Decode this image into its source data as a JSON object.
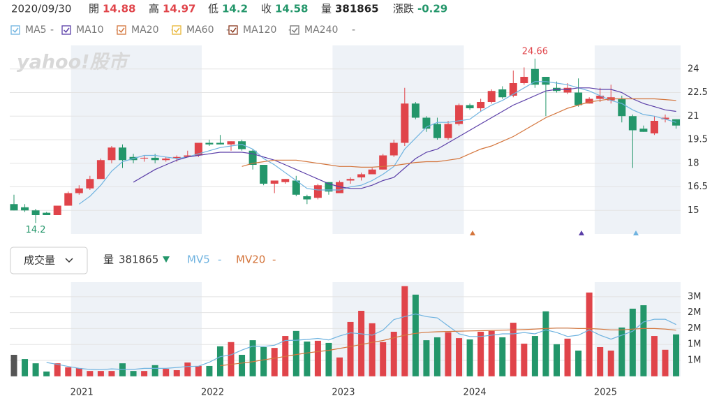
{
  "info": {
    "date": "2020/09/30",
    "fields": [
      {
        "label": "開",
        "value": 14.88,
        "color": "#e0444a"
      },
      {
        "label": "高",
        "value": 14.97,
        "color": "#e0444a"
      },
      {
        "label": "低",
        "value": 14.2,
        "color": "#23966a"
      },
      {
        "label": "收",
        "value": 14.58,
        "color": "#23966a"
      },
      {
        "label": "量",
        "value": 381865,
        "color": "#222222"
      },
      {
        "label": "漲跌",
        "value": -0.29,
        "color": "#23966a"
      }
    ]
  },
  "chart_data": [
    {
      "type": "candlestick",
      "watermark": "yahoo!股市",
      "up_color": "#e0444a",
      "down_color": "#23966a",
      "grid": true,
      "ylim": [
        13.5,
        25.5
      ],
      "yticks": [
        15,
        16.5,
        18,
        19.5,
        21,
        22.5,
        24
      ],
      "candles": {
        "open": [
          15.4,
          15.2,
          15.0,
          14.85,
          14.7,
          15.3,
          16.1,
          16.4,
          17.0,
          18.2,
          19.0,
          18.4,
          18.3,
          18.35,
          18.2,
          18.3,
          18.4,
          18.5,
          19.3,
          19.3,
          19.2,
          19.4,
          18.8,
          17.9,
          16.7,
          16.8,
          16.9,
          15.9,
          15.8,
          16.8,
          16.1,
          16.9,
          17.1,
          17.3,
          17.6,
          18.5,
          19.3,
          21.8,
          20.9,
          20.5,
          19.6,
          20.5,
          21.7,
          21.5,
          21.9,
          22.7,
          22.3,
          23.1,
          24.0,
          23.5,
          22.8,
          22.5,
          22.5,
          21.8,
          22.1,
          22.0,
          22.1,
          21.0,
          20.2,
          19.9,
          20.8,
          20.8
        ],
        "high": [
          16.0,
          15.4,
          15.1,
          14.9,
          15.3,
          16.2,
          16.6,
          17.2,
          18.3,
          19.1,
          19.2,
          18.6,
          18.5,
          18.6,
          18.4,
          18.5,
          18.8,
          19.3,
          19.5,
          19.8,
          19.4,
          19.5,
          18.9,
          17.9,
          16.9,
          17.0,
          17.2,
          16.0,
          16.7,
          16.8,
          16.9,
          17.1,
          17.4,
          17.7,
          18.6,
          19.5,
          22.8,
          21.9,
          21.0,
          20.9,
          20.7,
          21.8,
          21.8,
          22.1,
          22.7,
          22.9,
          23.9,
          24.1,
          24.66,
          23.5,
          23.2,
          23.1,
          23.4,
          22.2,
          22.8,
          23.0,
          22.3,
          21.1,
          20.4,
          21.0,
          21.1,
          20.8
        ],
        "low": [
          15.0,
          14.9,
          14.2,
          14.7,
          14.7,
          15.3,
          16.0,
          16.3,
          17.0,
          18.0,
          17.7,
          18.0,
          18.1,
          18.0,
          18.1,
          18.1,
          18.4,
          18.4,
          19.1,
          19.2,
          18.8,
          18.8,
          17.6,
          16.6,
          16.1,
          16.7,
          15.9,
          15.4,
          15.7,
          16.0,
          16.1,
          16.7,
          16.9,
          17.3,
          17.6,
          18.4,
          19.1,
          20.8,
          20.0,
          19.5,
          19.5,
          20.4,
          21.4,
          21.3,
          21.8,
          22.1,
          22.2,
          23.0,
          22.8,
          21.0,
          22.5,
          22.4,
          21.6,
          21.8,
          21.9,
          21.8,
          20.6,
          17.7,
          20.0,
          19.8,
          20.6,
          20.2
        ],
        "close": [
          15.0,
          15.0,
          14.7,
          14.7,
          15.3,
          16.1,
          16.4,
          17.0,
          18.2,
          19.0,
          18.2,
          18.2,
          18.35,
          18.2,
          18.3,
          18.4,
          18.5,
          19.3,
          19.2,
          19.2,
          19.4,
          18.9,
          17.9,
          16.7,
          16.9,
          17.0,
          16.0,
          15.7,
          16.6,
          16.2,
          16.8,
          17.0,
          17.3,
          17.6,
          18.5,
          19.3,
          21.8,
          20.9,
          20.2,
          19.6,
          20.5,
          21.7,
          21.5,
          21.9,
          22.6,
          22.2,
          23.1,
          23.5,
          23.0,
          23.0,
          22.6,
          22.8,
          21.7,
          22.1,
          22.3,
          22.2,
          21.0,
          20.1,
          20.0,
          20.7,
          20.9,
          20.4
        ]
      },
      "series": [
        {
          "name": "MA5",
          "color": "#6fb3e0",
          "current": "-",
          "values": [
            null,
            null,
            null,
            null,
            null,
            null,
            15.4,
            15.9,
            16.6,
            17.5,
            18.1,
            18.3,
            18.5,
            18.5,
            18.4,
            18.3,
            18.4,
            18.6,
            18.8,
            19.0,
            19.1,
            19.2,
            18.9,
            18.3,
            17.9,
            17.4,
            16.9,
            16.4,
            16.3,
            16.3,
            16.3,
            16.5,
            16.6,
            16.9,
            17.3,
            17.8,
            18.9,
            19.6,
            20.3,
            20.6,
            20.6,
            20.7,
            20.8,
            21.3,
            21.7,
            22.0,
            22.4,
            22.8,
            23.2,
            23.2,
            23.1,
            23.0,
            22.8,
            22.6,
            22.3,
            22.0,
            21.8,
            21.4,
            21.1,
            21.0,
            20.8,
            20.6
          ]
        },
        {
          "name": "MA10",
          "color": "#5b3fa8",
          "current": "-",
          "values": [
            null,
            null,
            null,
            null,
            null,
            null,
            null,
            null,
            null,
            null,
            null,
            16.8,
            17.2,
            17.6,
            17.9,
            18.2,
            18.4,
            18.5,
            18.6,
            18.7,
            18.7,
            18.7,
            18.6,
            18.4,
            18.2,
            17.9,
            17.6,
            17.3,
            17.0,
            16.7,
            16.5,
            16.4,
            16.4,
            16.6,
            16.9,
            17.1,
            17.7,
            18.3,
            18.7,
            18.9,
            19.3,
            19.7,
            20.1,
            20.5,
            20.9,
            21.3,
            21.7,
            22.0,
            22.3,
            22.6,
            22.7,
            22.7,
            22.8,
            22.8,
            22.7,
            22.7,
            22.5,
            22.1,
            21.8,
            21.6,
            21.4,
            21.3
          ]
        },
        {
          "name": "MA20",
          "color": "#d4753c",
          "current": "-",
          "values": [
            null,
            null,
            null,
            null,
            null,
            null,
            null,
            null,
            null,
            null,
            null,
            null,
            null,
            null,
            null,
            null,
            null,
            null,
            null,
            null,
            null,
            17.8,
            18.0,
            18.1,
            18.2,
            18.2,
            18.2,
            18.1,
            18.0,
            17.9,
            17.8,
            17.8,
            17.75,
            17.75,
            17.8,
            17.85,
            17.95,
            18.05,
            18.1,
            18.1,
            18.2,
            18.3,
            18.6,
            18.9,
            19.1,
            19.4,
            19.7,
            20.1,
            20.5,
            20.9,
            21.2,
            21.5,
            21.7,
            21.9,
            22.0,
            22.1,
            22.1,
            22.1,
            22.1,
            22.1,
            22.05,
            22.0
          ]
        },
        {
          "name": "MA60",
          "color": "#e8b534",
          "current": "-"
        },
        {
          "name": "MA120",
          "color": "#8b3a1f",
          "current": "-"
        },
        {
          "name": "MA240",
          "color": "#777777",
          "current": "-"
        }
      ]
    },
    {
      "type": "bar",
      "title": "成交量",
      "highlight_index": 0,
      "highlight_color": "#555555",
      "grid": true,
      "ylim": [
        0,
        3.55
      ],
      "yticks": [
        {
          "value": 0.6,
          "label": "1M"
        },
        {
          "value": 1.2,
          "label": "1M"
        },
        {
          "value": 1.8,
          "label": "2M"
        },
        {
          "value": 2.4,
          "label": "2M"
        },
        {
          "value": 3.0,
          "label": "3M"
        }
      ],
      "xticks": [
        {
          "value": 6.25,
          "label": "2021"
        },
        {
          "value": 18.3,
          "label": "2022"
        },
        {
          "value": 30.35,
          "label": "2023"
        },
        {
          "value": 42.45,
          "label": "2024"
        },
        {
          "value": 54.5,
          "label": "2025"
        }
      ],
      "values": [
        0.81,
        0.65,
        0.49,
        0.18,
        0.49,
        0.34,
        0.31,
        0.2,
        0.2,
        0.2,
        0.49,
        0.2,
        0.2,
        0.42,
        0.28,
        0.23,
        0.52,
        0.39,
        0.39,
        1.13,
        1.29,
        0.81,
        1.36,
        1.1,
        1.07,
        1.52,
        1.71,
        1.31,
        1.34,
        1.26,
        0.71,
        2.05,
        2.47,
        2.0,
        1.29,
        1.68,
        3.4,
        3.08,
        1.36,
        1.47,
        1.66,
        1.44,
        1.39,
        1.68,
        1.71,
        1.47,
        2.02,
        1.23,
        1.52,
        2.45,
        1.21,
        1.42,
        0.97,
        3.16,
        1.1,
        0.97,
        1.84,
        2.55,
        2.68,
        1.52,
        1.0,
        1.58
      ],
      "series": [
        {
          "name": "MV5",
          "color": "#6fb3e0",
          "current": "-",
          "values": [
            null,
            null,
            null,
            0.52,
            0.45,
            0.37,
            0.3,
            0.26,
            0.25,
            0.28,
            0.26,
            0.26,
            0.3,
            0.3,
            0.3,
            0.33,
            0.37,
            0.38,
            0.53,
            0.74,
            0.81,
            0.99,
            1.14,
            1.13,
            1.17,
            1.35,
            1.36,
            1.39,
            1.43,
            1.37,
            1.52,
            1.64,
            1.6,
            1.55,
            1.74,
            2.14,
            2.25,
            2.35,
            2.25,
            2.2,
            1.9,
            1.6,
            1.5,
            1.5,
            1.55,
            1.6,
            1.6,
            1.65,
            1.6,
            1.75,
            1.65,
            1.5,
            1.55,
            1.75,
            1.55,
            1.4,
            1.55,
            1.7,
            2.05,
            2.15,
            2.15,
            1.95
          ]
        },
        {
          "name": "MV20",
          "color": "#d4753c",
          "current": "-",
          "values": [
            null,
            null,
            null,
            null,
            null,
            null,
            null,
            null,
            null,
            null,
            null,
            null,
            null,
            null,
            null,
            null,
            null,
            null,
            null,
            0.4,
            0.45,
            0.5,
            0.55,
            0.62,
            0.68,
            0.75,
            0.82,
            0.88,
            0.93,
            0.98,
            1.05,
            1.12,
            1.2,
            1.28,
            1.35,
            1.45,
            1.55,
            1.62,
            1.66,
            1.68,
            1.69,
            1.7,
            1.71,
            1.72,
            1.73,
            1.74,
            1.75,
            1.76,
            1.78,
            1.8,
            1.82,
            1.82,
            1.8,
            1.8,
            1.78,
            1.75,
            1.75,
            1.78,
            1.8,
            1.8,
            1.78,
            1.74
          ]
        }
      ]
    }
  ]
}
